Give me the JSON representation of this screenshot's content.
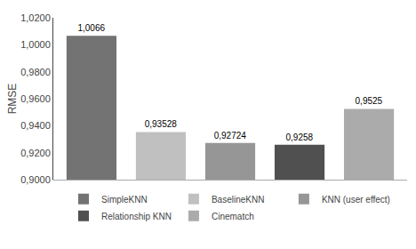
{
  "chart_data": {
    "type": "bar",
    "categories": [
      "SimpleKNN",
      "BaselineKNN",
      "KNN (user effect)",
      "Relationship KNN",
      "Cinematch"
    ],
    "values": [
      1.0066,
      0.93528,
      0.92724,
      0.9258,
      0.9525
    ],
    "value_labels": [
      "1,0066",
      "0,93528",
      "0,92724",
      "0,9258",
      "0,9525"
    ],
    "colors": [
      "#737373",
      "#c0c0c0",
      "#969696",
      "#505050",
      "#ababab"
    ],
    "data_labels": true,
    "ylabel": "RMSE",
    "ylim": [
      0.9,
      1.02
    ],
    "yticks": [
      {
        "value": 0.9,
        "label": "0,9000"
      },
      {
        "value": 0.92,
        "label": "0,9200"
      },
      {
        "value": 0.94,
        "label": "0,9400"
      },
      {
        "value": 0.96,
        "label": "0,9600"
      },
      {
        "value": 0.98,
        "label": "0,9800"
      },
      {
        "value": 1.0,
        "label": "1,0000"
      },
      {
        "value": 1.02,
        "label": "1,0200"
      }
    ],
    "grid": false,
    "legend": "bottom",
    "tick_labels": "y"
  }
}
